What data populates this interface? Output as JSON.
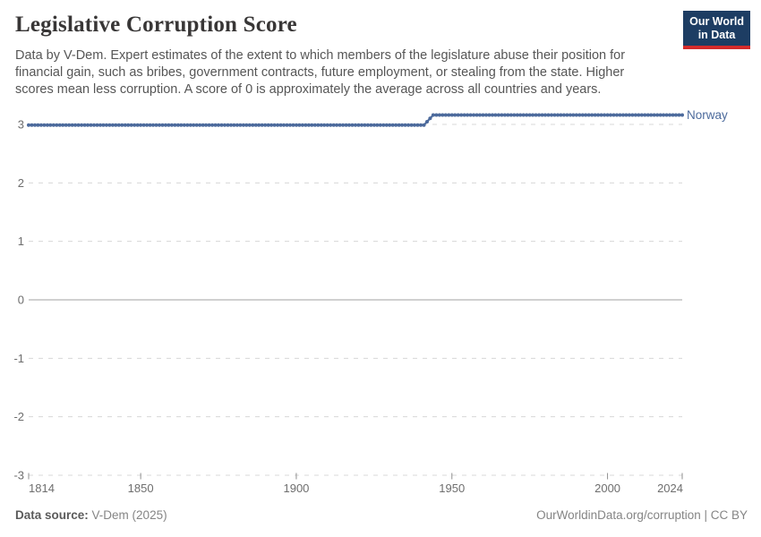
{
  "header": {
    "title": "Legislative Corruption Score",
    "subtitle_lines": [
      "Data by V-Dem. Expert estimates of the extent to which members of the legislature abuse their position for",
      "financial gain, such as bribes, government contracts, future employment, or stealing from the state. Higher",
      "scores mean less corruption. A score of 0 is approximately the average across all countries and years."
    ],
    "logo": {
      "line1": "Our World",
      "line2": "in Data"
    }
  },
  "chart_data": {
    "type": "line",
    "title": "Legislative Corruption Score",
    "xlabel": "",
    "ylabel": "",
    "xlim": [
      1814,
      2024
    ],
    "ylim": [
      -3,
      3
    ],
    "x_ticks": [
      "1814",
      "1850",
      "1900",
      "1950",
      "2000",
      "2024"
    ],
    "x_tick_values": [
      1814,
      1850,
      1900,
      1950,
      2000,
      2024
    ],
    "y_ticks": [
      "3",
      "2",
      "1",
      "0",
      "-1",
      "-2",
      "-3"
    ],
    "y_tick_values": [
      3,
      2,
      1,
      0,
      -1,
      -2,
      -3
    ],
    "grid": "horizontal dashed gridlines, solid line at 0, dashed baseline at -3",
    "legend_position": "label at right end of line",
    "series": [
      {
        "name": "Norway",
        "color": "#4c6a9c",
        "points": [
          [
            1814,
            2.99
          ],
          [
            1941,
            2.99
          ],
          [
            1944,
            3.16
          ],
          [
            2024,
            3.16
          ]
        ],
        "markers": "circle marker at every year"
      }
    ]
  },
  "footer": {
    "source_label": "Data source:",
    "source_value": "V-Dem (2025)",
    "attribution": "OurWorldinData.org/corruption | CC BY"
  },
  "colors": {
    "line": "#4c6a9c",
    "entity_label": "#4c6a9c",
    "grid": "#d8d8d8",
    "zero_line": "#a0a0a0",
    "axis_tick": "#8f8f8f",
    "tick_label": "#6e6e6e",
    "title": "#383636",
    "subtitle": "#565656",
    "footer": "#858585",
    "logo_bg": "#1d3d63",
    "logo_red": "#d42b2b"
  }
}
